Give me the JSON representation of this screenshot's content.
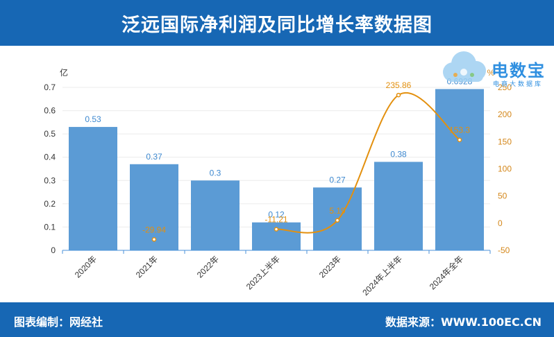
{
  "header": {
    "title": "泛远国际净利润及同比增长率数据图"
  },
  "logo": {
    "name": "电数宝",
    "tagline": "电商大数据库"
  },
  "footer": {
    "compiled_by": "图表编制：网经社",
    "source": "数据来源：WWW.100EC.CN"
  },
  "colors": {
    "brand": "#1767b4",
    "bar": "#5b9bd5",
    "bar_label": "#3d88cf",
    "line": "#e3900e",
    "right_axis_label": "#d4871a",
    "grid": "#ebebeb",
    "axis": "#4a90d9",
    "logo": "#2f8fe0"
  },
  "chart_data": {
    "type": "bar",
    "categories": [
      "2020年",
      "2021年",
      "2022年",
      "2023上半年",
      "2023年",
      "2024年上半年",
      "2024年全年"
    ],
    "series": [
      {
        "type": "bar",
        "axis": "left",
        "values": [
          0.53,
          0.37,
          0.3,
          0.12,
          0.27,
          0.38,
          0.6928
        ]
      },
      {
        "type": "line",
        "axis": "right",
        "values": [
          null,
          -29.94,
          null,
          -11.21,
          5.19,
          235.86,
          153.3
        ]
      }
    ],
    "y_left": {
      "unit": "亿",
      "ylim": [
        0,
        0.7
      ],
      "ticks": [
        "0",
        "0.1",
        "0.2",
        "0.3",
        "0.4",
        "0.5",
        "0.6",
        "0.7"
      ]
    },
    "y_right": {
      "unit": "%",
      "ylim": [
        -50,
        250
      ],
      "ticks": [
        "-50",
        "0",
        "50",
        "100",
        "150",
        "200",
        "250"
      ]
    },
    "grid": true,
    "legend": "none"
  }
}
